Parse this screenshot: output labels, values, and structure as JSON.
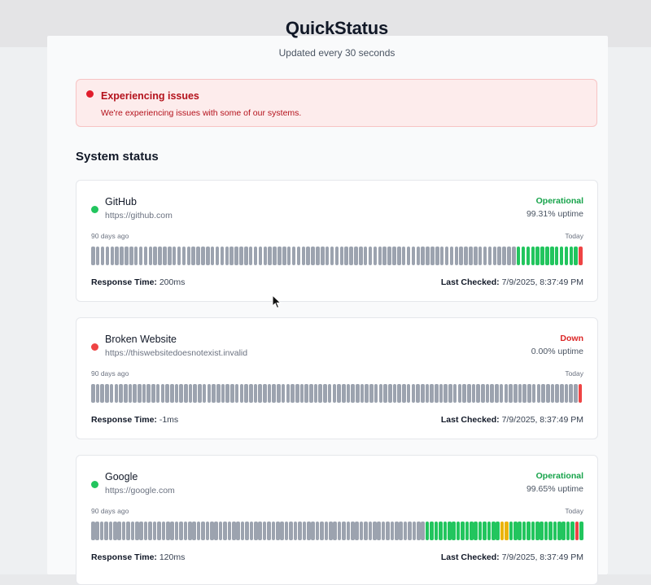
{
  "app": {
    "title": "QuickStatus",
    "subtitle": "Updated every 30 seconds"
  },
  "alert": {
    "title": "Experiencing issues",
    "message": "We're experiencing issues with some of our systems.",
    "color": "#e11d2c"
  },
  "section": {
    "title": "System status"
  },
  "colors": {
    "operational": "#22c55e",
    "down": "#ef4444",
    "degraded": "#eab308",
    "no_data": "#9ca3af"
  },
  "services": [
    {
      "name": "GitHub",
      "url": "https://github.com",
      "status": "Operational",
      "status_color": "#16a34a",
      "dot_color": "#22c55e",
      "uptime": "99.31% uptime",
      "range_start_label": "90 days ago",
      "range_end_label": "Today",
      "response_label": "Response Time:",
      "response_value": "200ms",
      "checked_label": "Last Checked:",
      "checked_value": "7/9/2025, 8:37:49 PM",
      "history": "nnnnnnnnnnnnnnnnnnnnnnnnnnnnnnnnnnnnnnnnnnnnnnnnnnnnnnnnnnnnnnnnnnnnnnnnnnnnnnnnnnnnnnnnnooooooooooooo d"
    },
    {
      "name": "Broken Website",
      "url": "https://thiswebsitedoesnotexist.invalid",
      "status": "Down",
      "status_color": "#dc2626",
      "dot_color": "#ef4444",
      "uptime": "0.00% uptime",
      "range_start_label": "90 days ago",
      "range_end_label": "Today",
      "response_label": "Response Time:",
      "response_value": "-1ms",
      "checked_label": "Last Checked:",
      "checked_value": "7/9/2025, 8:37:49 PM",
      "history": "nnnnnnnnnnnnnnnnnnnnnnnnnnnnnnnnnnnnnnnnnnnnnnnnnnnnnnnnnnnnnnnnnnnnnnnnnnnnnnnnnnnnnnnnnnnnnnnnnnnnnnnnnd"
    },
    {
      "name": "Google",
      "url": "https://google.com",
      "status": "Operational",
      "status_color": "#16a34a",
      "dot_color": "#22c55e",
      "uptime": "99.65% uptime",
      "range_start_label": "90 days ago",
      "range_end_label": "Today",
      "response_label": "Response Time:",
      "response_value": "120ms",
      "checked_label": "Last Checked:",
      "checked_value": "7/9/2025, 8:37:49 PM",
      "history": "nnnnnnnnnnnnnnnnnnnnnnnnnnnnnnnnnnnnnnnnnnnnnnnnnnnnnnnnnnnnnnnnnnnnnnnnnnnnoooooooooooooooooyyooooooooooooooodo"
    }
  ]
}
